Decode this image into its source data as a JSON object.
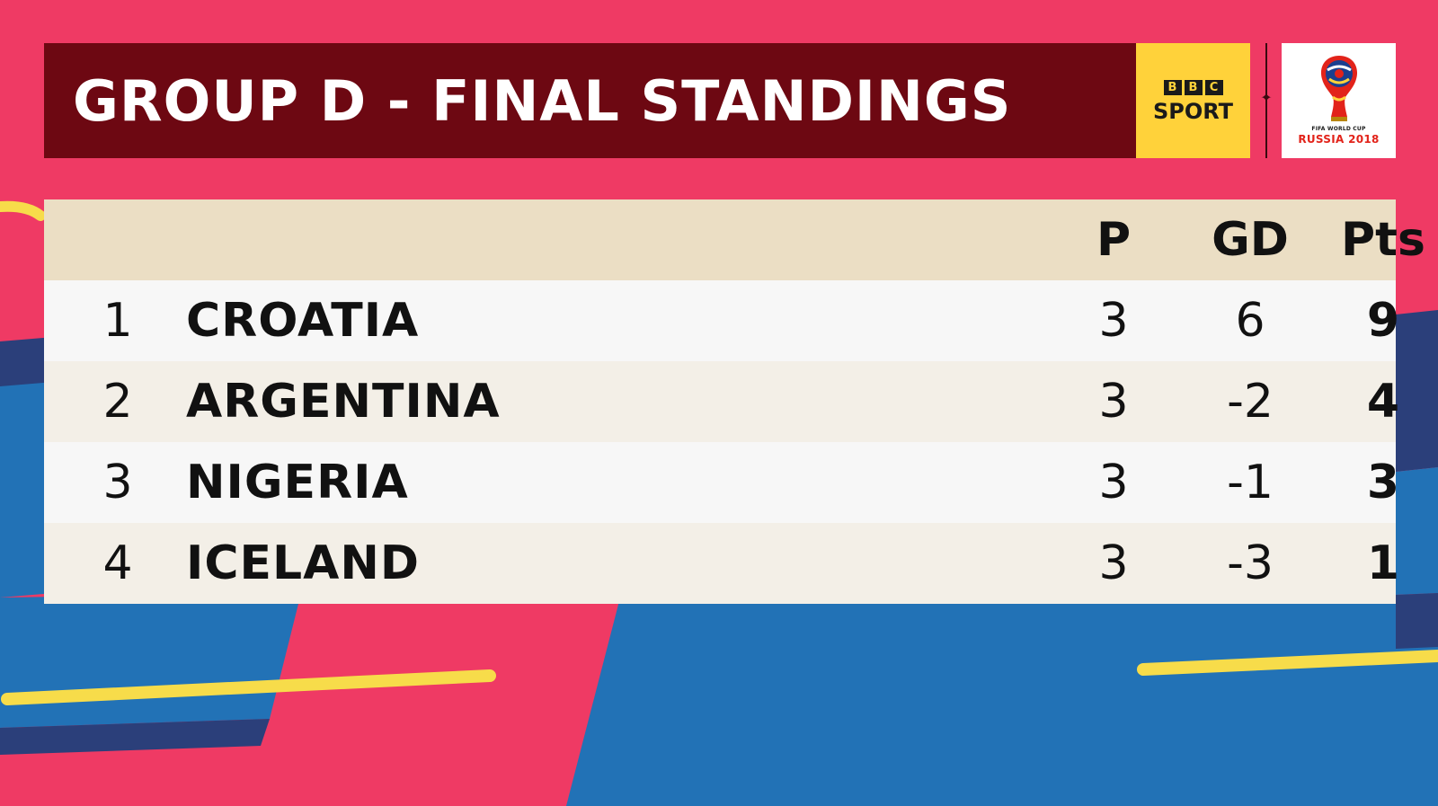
{
  "title": "GROUP D - FINAL STANDINGS",
  "branding": {
    "bbc_letters": [
      "B",
      "B",
      "C"
    ],
    "bbc_sport": "SPORT",
    "wc_line1": "FIFA WORLD CUP",
    "wc_line2": "RUSSIA 2018"
  },
  "table": {
    "headers": {
      "pos": "",
      "team": "",
      "played": "P",
      "gd": "GD",
      "pts": "Pts"
    },
    "rows": [
      {
        "pos": "1",
        "team": "CROATIA",
        "played": "3",
        "gd": "6",
        "pts": "9"
      },
      {
        "pos": "2",
        "team": "ARGENTINA",
        "played": "3",
        "gd": "-2",
        "pts": "4"
      },
      {
        "pos": "3",
        "team": "NIGERIA",
        "played": "3",
        "gd": "-1",
        "pts": "3"
      },
      {
        "pos": "4",
        "team": "ICELAND",
        "played": "3",
        "gd": "-3",
        "pts": "1"
      }
    ]
  },
  "colors": {
    "background": "#ef3a64",
    "title_bar": "#6d0812",
    "bbc_yellow": "#ffd23a",
    "header_row": "#ebdec4",
    "row_light": "#f7f7f7",
    "row_cream": "#f3efe7",
    "accent_blue": "#2272b6",
    "accent_navy": "#2b3f7a",
    "accent_yellow": "#f7dc4a"
  }
}
